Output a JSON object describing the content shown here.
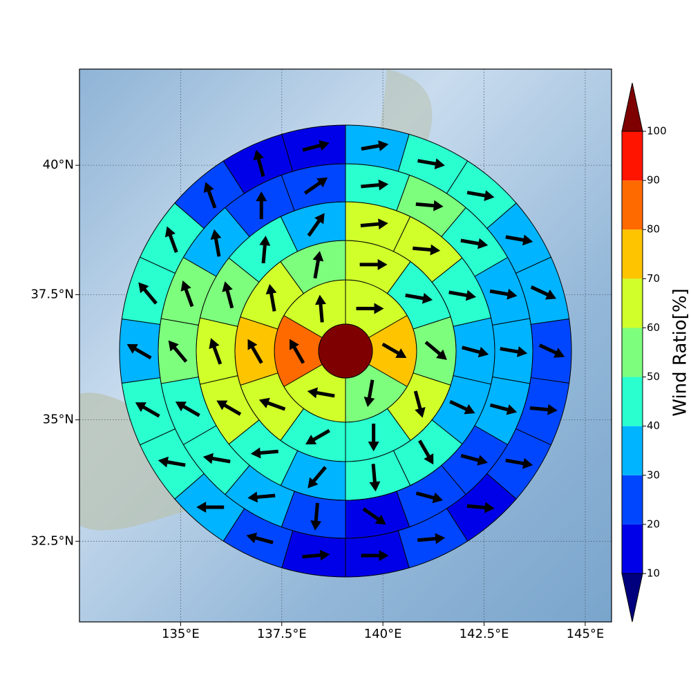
{
  "chart_data": {
    "type": "polar_sector_map",
    "xlim": [
      132.5,
      145.65
    ],
    "ylim": [
      30.8,
      41.8
    ],
    "xticks": [
      {
        "value": 135,
        "label": "135°E"
      },
      {
        "value": 137.5,
        "label": "137.5°E"
      },
      {
        "value": 140,
        "label": "140°E"
      },
      {
        "value": 142.5,
        "label": "142.5°E"
      },
      {
        "value": 145,
        "label": "145°E"
      }
    ],
    "yticks": [
      {
        "value": 32.5,
        "label": "32.5°N"
      },
      {
        "value": 35,
        "label": "35°N"
      },
      {
        "value": 37.5,
        "label": "37.5°N"
      },
      {
        "value": 40,
        "label": "40°N"
      }
    ],
    "grid": true,
    "center": {
      "value": 105
    },
    "rings": [
      {
        "values": [
          65,
          75,
          55,
          65,
          85,
          65
        ],
        "directions": [
          90,
          120,
          190,
          280,
          330,
          355
        ]
      },
      {
        "values": [
          65,
          45,
          55,
          65,
          45,
          45,
          65,
          75,
          65,
          55
        ],
        "directions": [
          90,
          100,
          130,
          165,
          180,
          240,
          290,
          330,
          350,
          10
        ]
      },
      {
        "values": [
          65,
          65,
          45,
          35,
          35,
          45,
          45,
          35,
          45,
          65,
          65,
          55,
          45,
          35
        ],
        "directions": [
          85,
          95,
          100,
          105,
          115,
          150,
          175,
          220,
          265,
          300,
          340,
          345,
          5,
          35
        ]
      },
      {
        "values": [
          45,
          55,
          45,
          35,
          35,
          35,
          25,
          25,
          15,
          25,
          35,
          45,
          45,
          55,
          55,
          35,
          25,
          25
        ],
        "directions": [
          85,
          95,
          100,
          100,
          100,
          105,
          105,
          105,
          125,
          185,
          265,
          280,
          300,
          320,
          340,
          350,
          0,
          55
        ]
      },
      {
        "values": [
          35,
          45,
          45,
          35,
          35,
          25,
          25,
          25,
          15,
          25,
          15,
          15,
          25,
          35,
          45,
          45,
          35,
          45,
          45,
          25,
          15,
          15
        ],
        "directions": [
          80,
          100,
          100,
          100,
          115,
          115,
          95,
          100,
          95,
          85,
          90,
          85,
          285,
          270,
          280,
          300,
          300,
          320,
          340,
          340,
          345,
          75
        ]
      }
    ],
    "arrow_color": "#000000",
    "colorbar": {
      "label": "Wind Ratio[%]",
      "ticks": [
        10,
        20,
        30,
        40,
        50,
        60,
        70,
        80,
        90,
        100
      ],
      "colors": [
        "#00007f",
        "#0000e8",
        "#0046ff",
        "#00b4ff",
        "#2affd0",
        "#7dff7d",
        "#d0ff2a",
        "#ffc400",
        "#ff6a00",
        "#ff1400",
        "#7f0000"
      ]
    }
  }
}
